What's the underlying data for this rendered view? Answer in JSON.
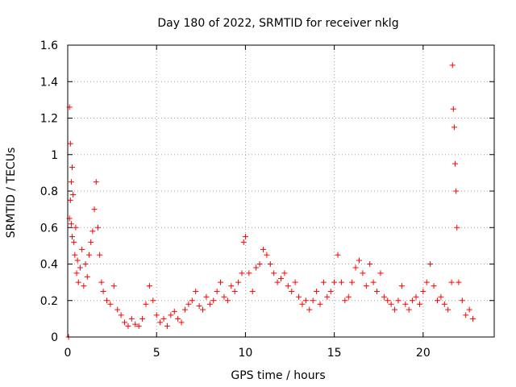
{
  "chart_data": {
    "type": "scatter",
    "title": "Day 180 of 2022, SRMTID for receiver nklg",
    "xlabel": "GPS time / hours",
    "ylabel": "SRMTID / TECUs",
    "xlim": [
      0,
      24
    ],
    "ylim": [
      0,
      1.6
    ],
    "x_ticks": [
      0,
      5,
      10,
      15,
      20
    ],
    "x_tick_labels": [
      "0",
      "5",
      "10",
      "15",
      "20"
    ],
    "y_ticks": [
      0,
      0.2,
      0.4,
      0.6,
      0.8,
      1,
      1.2,
      1.4,
      1.6
    ],
    "y_tick_labels": [
      "0",
      "0.2",
      "0.4",
      "0.6",
      "0.8",
      "1",
      "1.2",
      "1.4",
      "1.6"
    ],
    "grid": true,
    "marker": "+",
    "series": [
      {
        "name": "SRMTID",
        "color": "#ff0000",
        "x": [
          0.05,
          0.1,
          0.1,
          0.15,
          0.15,
          0.2,
          0.2,
          0.25,
          0.25,
          0.3,
          0.35,
          0.4,
          0.45,
          0.5,
          0.55,
          0.6,
          0.7,
          0.8,
          0.9,
          1.0,
          1.1,
          1.2,
          1.3,
          1.4,
          1.5,
          1.6,
          1.7,
          1.8,
          1.9,
          2.0,
          2.2,
          2.4,
          2.6,
          2.8,
          3.0,
          3.2,
          3.4,
          3.6,
          3.8,
          4.0,
          4.2,
          4.4,
          4.6,
          4.8,
          5.0,
          5.2,
          5.4,
          5.6,
          5.8,
          6.0,
          6.2,
          6.4,
          6.6,
          6.8,
          7.0,
          7.2,
          7.4,
          7.6,
          7.8,
          8.0,
          8.2,
          8.4,
          8.6,
          8.8,
          9.0,
          9.2,
          9.4,
          9.6,
          9.8,
          9.9,
          10.0,
          10.2,
          10.4,
          10.6,
          10.8,
          11.0,
          11.2,
          11.4,
          11.6,
          11.8,
          12.0,
          12.2,
          12.4,
          12.6,
          12.8,
          13.0,
          13.2,
          13.4,
          13.6,
          13.8,
          14.0,
          14.2,
          14.4,
          14.6,
          14.8,
          15.0,
          15.2,
          15.4,
          15.6,
          15.8,
          16.0,
          16.2,
          16.4,
          16.6,
          16.8,
          17.0,
          17.2,
          17.4,
          17.6,
          17.8,
          18.0,
          18.2,
          18.4,
          18.6,
          18.8,
          19.0,
          19.2,
          19.4,
          19.6,
          19.8,
          20.0,
          20.2,
          20.4,
          20.6,
          20.8,
          21.0,
          21.2,
          21.4,
          21.6,
          21.65,
          21.7,
          21.75,
          21.8,
          21.85,
          21.9,
          22.0,
          22.2,
          22.4,
          22.6,
          22.8
        ],
        "y": [
          0.0,
          1.26,
          0.65,
          1.06,
          0.75,
          0.85,
          0.62,
          0.93,
          0.55,
          0.78,
          0.52,
          0.45,
          0.6,
          0.35,
          0.42,
          0.3,
          0.38,
          0.48,
          0.28,
          0.4,
          0.33,
          0.45,
          0.52,
          0.58,
          0.7,
          0.85,
          0.6,
          0.45,
          0.3,
          0.25,
          0.2,
          0.18,
          0.28,
          0.15,
          0.12,
          0.08,
          0.06,
          0.1,
          0.07,
          0.06,
          0.1,
          0.18,
          0.28,
          0.2,
          0.12,
          0.08,
          0.1,
          0.06,
          0.12,
          0.14,
          0.1,
          0.08,
          0.15,
          0.18,
          0.2,
          0.25,
          0.17,
          0.15,
          0.22,
          0.18,
          0.2,
          0.25,
          0.3,
          0.22,
          0.2,
          0.28,
          0.25,
          0.3,
          0.35,
          0.52,
          0.55,
          0.35,
          0.25,
          0.38,
          0.4,
          0.48,
          0.45,
          0.4,
          0.35,
          0.3,
          0.32,
          0.35,
          0.28,
          0.25,
          0.3,
          0.22,
          0.18,
          0.2,
          0.15,
          0.2,
          0.25,
          0.18,
          0.3,
          0.22,
          0.25,
          0.3,
          0.45,
          0.3,
          0.2,
          0.22,
          0.3,
          0.38,
          0.42,
          0.35,
          0.28,
          0.4,
          0.3,
          0.25,
          0.35,
          0.22,
          0.2,
          0.18,
          0.15,
          0.2,
          0.28,
          0.18,
          0.15,
          0.2,
          0.22,
          0.18,
          0.25,
          0.3,
          0.4,
          0.28,
          0.2,
          0.22,
          0.18,
          0.15,
          0.3,
          1.49,
          1.25,
          1.15,
          0.95,
          0.8,
          0.6,
          0.3,
          0.2,
          0.12,
          0.15,
          0.1
        ]
      }
    ]
  }
}
